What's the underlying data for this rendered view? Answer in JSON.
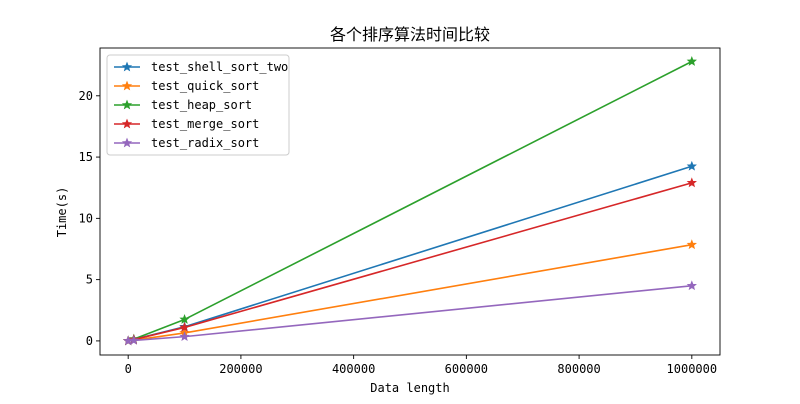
{
  "chart_data": {
    "type": "line",
    "title": "各个排序算法时间比较",
    "xlabel": "Data length",
    "ylabel": "Time(s)",
    "x": [
      0,
      10000,
      100000,
      1000000
    ],
    "xlim": [
      -50000,
      1050000
    ],
    "ylim": [
      -1.15,
      23.9
    ],
    "xticks": [
      0,
      200000,
      400000,
      600000,
      800000,
      1000000
    ],
    "xtick_labels": [
      "0",
      "200000",
      "400000",
      "600000",
      "800000",
      "1000000"
    ],
    "yticks": [
      0,
      5,
      10,
      15,
      20
    ],
    "ytick_labels": [
      "0",
      "5",
      "10",
      "15",
      "20"
    ],
    "grid": false,
    "legend_position": "top-left",
    "marker": "star",
    "series": [
      {
        "name": "test_shell_sort_two",
        "color": "#1f77b4",
        "values": [
          0.0,
          0.12,
          1.15,
          14.25
        ]
      },
      {
        "name": "test_quick_sort",
        "color": "#ff7f0e",
        "values": [
          0.0,
          0.06,
          0.65,
          7.85
        ]
      },
      {
        "name": "test_heap_sort",
        "color": "#2ca02c",
        "values": [
          0.0,
          0.15,
          1.75,
          22.8
        ]
      },
      {
        "name": "test_merge_sort",
        "color": "#d62728",
        "values": [
          0.0,
          0.11,
          1.1,
          12.9
        ]
      },
      {
        "name": "test_radix_sort",
        "color": "#9467bd",
        "values": [
          0.0,
          0.04,
          0.35,
          4.5
        ]
      }
    ]
  }
}
